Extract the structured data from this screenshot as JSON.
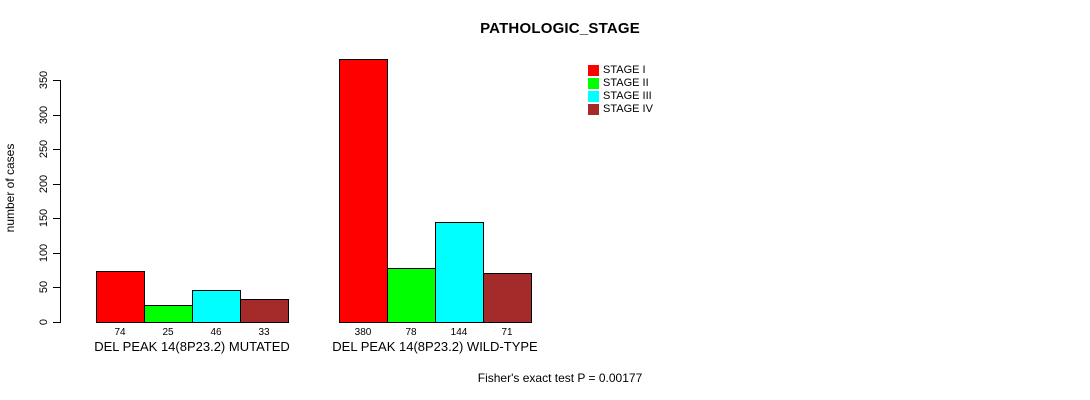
{
  "chart_data": {
    "type": "bar",
    "title": "PATHOLOGIC_STAGE",
    "ylabel": "number of cases",
    "xlabel": "",
    "ylim": [
      0,
      350
    ],
    "yticks": [
      0,
      50,
      100,
      150,
      200,
      250,
      300,
      350
    ],
    "grid": false,
    "legend_position": "top-right",
    "categories": [
      "DEL PEAK 14(8P23.2) MUTATED",
      "DEL PEAK 14(8P23.2) WILD-TYPE"
    ],
    "series": [
      {
        "name": "STAGE I",
        "color": "#ff0000",
        "values": [
          74,
          380
        ]
      },
      {
        "name": "STAGE II",
        "color": "#00ff00",
        "values": [
          25,
          78
        ]
      },
      {
        "name": "STAGE III",
        "color": "#00ffff",
        "values": [
          46,
          144
        ]
      },
      {
        "name": "STAGE IV",
        "color": "#a52a2a",
        "values": [
          33,
          71
        ]
      }
    ],
    "bar_value_labels": [
      [
        74,
        25,
        46,
        33
      ],
      [
        380,
        78,
        144,
        71
      ]
    ],
    "footer": "Fisher's exact test P = 0.00177"
  }
}
